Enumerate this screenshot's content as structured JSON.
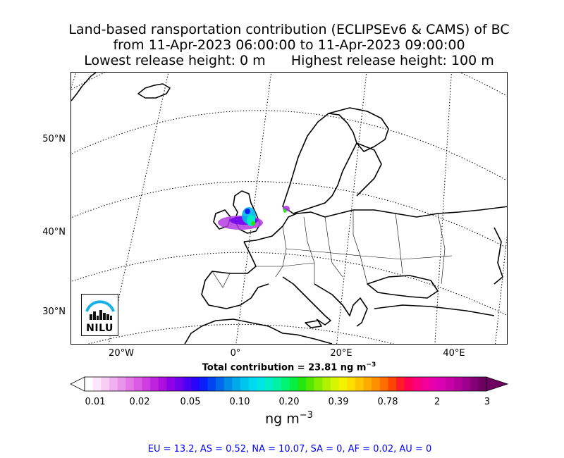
{
  "title": {
    "line1": "Land-based ransportation contribution (ECLIPSEv6 & CAMS) of BC",
    "line2": "from 11-Apr-2023 06:00:00 to 11-Apr-2023 09:00:00",
    "line3": "Lowest release height: 0 m      Highest release height: 100 m"
  },
  "map": {
    "lat_labels": [
      "50°N",
      "40°N",
      "30°N"
    ],
    "lon_labels": [
      "20°W",
      "0°",
      "20°E",
      "40°E"
    ],
    "logo_text": "NILU"
  },
  "total_contribution": "Total contribution = 23.81 ng m",
  "total_unit_exp": "−3",
  "colorbar": {
    "ticks": [
      "0.01",
      "0.02",
      "0.05",
      "0.10",
      "0.20",
      "0.39",
      "0.78",
      "2",
      "3"
    ],
    "unit": "ng m",
    "unit_exp": "−3",
    "colors": [
      "#ffffff",
      "#fde6fb",
      "#f9ccf6",
      "#f3b0f1",
      "#eb94ec",
      "#e476e8",
      "#db5ae4",
      "#cf3ee1",
      "#c022df",
      "#ad0ee0",
      "#9000e6",
      "#7000ee",
      "#4d00f4",
      "#2a05fb",
      "#0a1ff9",
      "#0043f0",
      "#0068ea",
      "#008be8",
      "#00a9ea",
      "#00c3ee",
      "#00d9ef",
      "#00e6e3",
      "#00eec6",
      "#00f39e",
      "#00f472",
      "#06ee3f",
      "#22e60f",
      "#54e800",
      "#83ee00",
      "#b0f200",
      "#d8f500",
      "#f4f200",
      "#ffde00",
      "#ffc600",
      "#ffac00",
      "#ff8e00",
      "#ff6c00",
      "#ff4400",
      "#ff1a28",
      "#ff0057",
      "#fb007b",
      "#f3009b",
      "#e600ac",
      "#d800b0",
      "#c700a8",
      "#b3009c",
      "#9c008c",
      "#860077",
      "#6d0060"
    ]
  },
  "footer": "EU = 13.2,  AS = 0.52,  NA = 10.07,  SA = 0,  AF = 0.02,  AU = 0"
}
